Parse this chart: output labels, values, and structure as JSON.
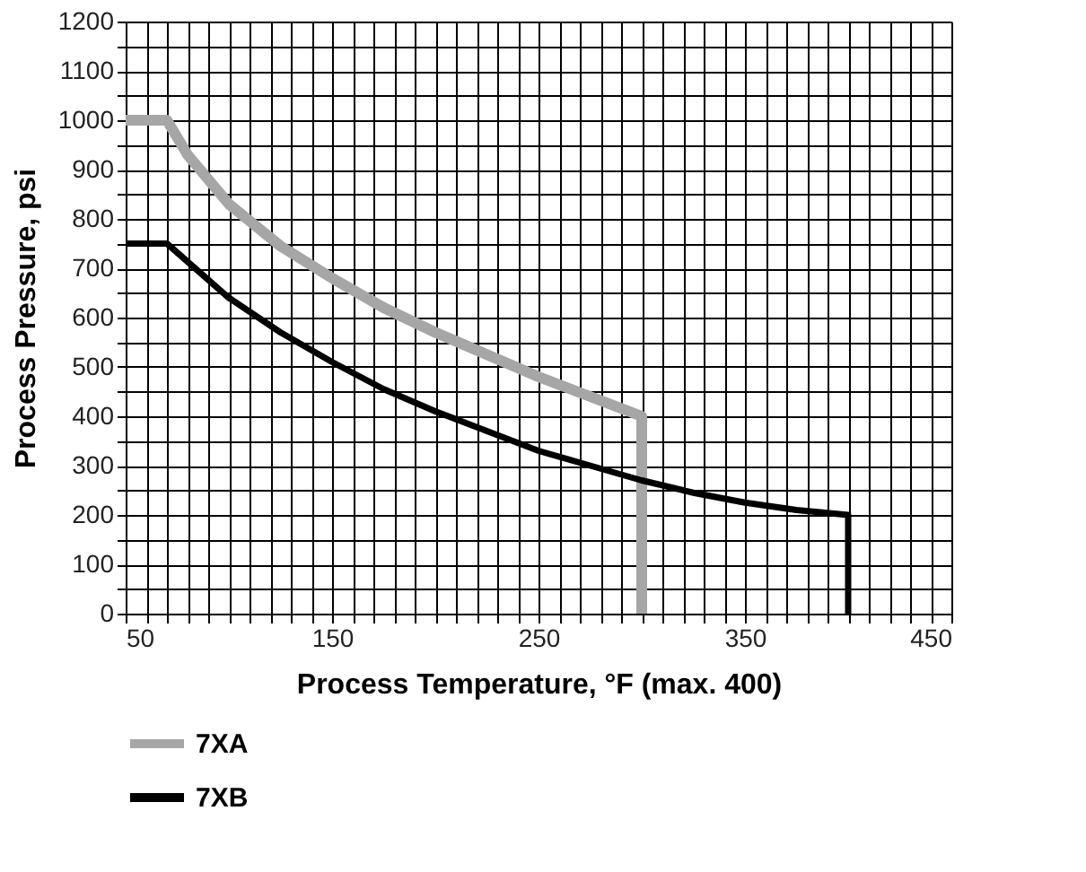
{
  "chart_data": {
    "type": "line",
    "xlabel": "Process Temperature, °F (max. 400)",
    "ylabel": "Process Pressure, psi",
    "xlim": [
      50,
      450
    ],
    "ylim": [
      0,
      1200
    ],
    "xticks": [
      50,
      {
        "value": 60,
        "label": null
      },
      {
        "value": 70,
        "label": null
      },
      {
        "value": 80,
        "label": null
      },
      {
        "value": 90,
        "label": null
      },
      {
        "value": 100,
        "label": null
      },
      {
        "value": 110,
        "label": null
      },
      {
        "value": 120,
        "label": null
      },
      {
        "value": 130,
        "label": null
      },
      {
        "value": 140,
        "label": null
      },
      150,
      {
        "value": 160,
        "label": null
      },
      {
        "value": 170,
        "label": null
      },
      {
        "value": 180,
        "label": null
      },
      {
        "value": 190,
        "label": null
      },
      {
        "value": 200,
        "label": null
      },
      {
        "value": 210,
        "label": null
      },
      {
        "value": 220,
        "label": null
      },
      {
        "value": 230,
        "label": null
      },
      {
        "value": 240,
        "label": null
      },
      250,
      {
        "value": 260,
        "label": null
      },
      {
        "value": 270,
        "label": null
      },
      {
        "value": 280,
        "label": null
      },
      {
        "value": 290,
        "label": null
      },
      {
        "value": 300,
        "label": null
      },
      {
        "value": 310,
        "label": null
      },
      {
        "value": 320,
        "label": null
      },
      {
        "value": 330,
        "label": null
      },
      {
        "value": 340,
        "label": null
      },
      350,
      {
        "value": 360,
        "label": null
      },
      {
        "value": 370,
        "label": null
      },
      {
        "value": 380,
        "label": null
      },
      {
        "value": 390,
        "label": null
      },
      {
        "value": 400,
        "label": null
      },
      {
        "value": 410,
        "label": null
      },
      {
        "value": 420,
        "label": null
      },
      {
        "value": 430,
        "label": null
      },
      {
        "value": 440,
        "label": null
      },
      450
    ],
    "yticks": [
      0,
      {
        "value": 50,
        "label": null
      },
      100,
      {
        "value": 150,
        "label": null
      },
      200,
      {
        "value": 250,
        "label": null
      },
      300,
      {
        "value": 350,
        "label": null
      },
      400,
      {
        "value": 450,
        "label": null
      },
      500,
      {
        "value": 550,
        "label": null
      },
      600,
      {
        "value": 650,
        "label": null
      },
      700,
      {
        "value": 750,
        "label": null
      },
      800,
      {
        "value": 850,
        "label": null
      },
      900,
      {
        "value": 950,
        "label": null
      },
      1000,
      {
        "value": 1050,
        "label": null
      },
      1100,
      {
        "value": 1150,
        "label": null
      },
      1200
    ],
    "grid": true,
    "legend": "bottom",
    "line_style": "solid",
    "marker": "none",
    "series": [
      {
        "name": "7XA",
        "color": "#a6a6a6",
        "x": [
          50,
          70,
          80,
          100,
          125,
          150,
          175,
          200,
          225,
          250,
          275,
          300,
          300
        ],
        "values": [
          1000,
          1000,
          930,
          830,
          745,
          680,
          620,
          570,
          525,
          480,
          440,
          400,
          0
        ]
      },
      {
        "name": "7XB",
        "color": "#000000",
        "x": [
          50,
          70,
          100,
          125,
          150,
          175,
          200,
          225,
          250,
          275,
          300,
          325,
          350,
          375,
          400,
          400
        ],
        "values": [
          750,
          750,
          640,
          570,
          510,
          455,
          410,
          370,
          330,
          300,
          270,
          245,
          225,
          210,
          200,
          0
        ]
      }
    ]
  }
}
